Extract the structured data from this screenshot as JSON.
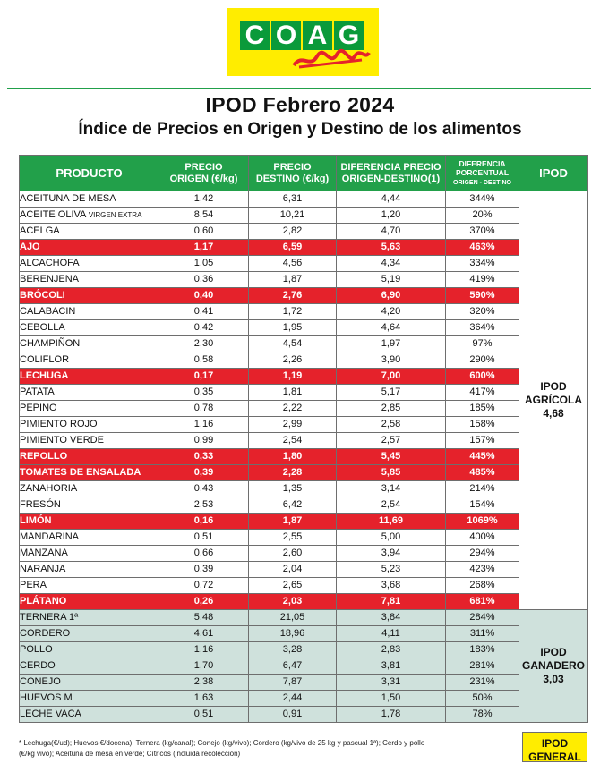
{
  "logo": {
    "text": "COAG",
    "letters": [
      "C",
      "O",
      "A",
      "G"
    ]
  },
  "title": "IPOD Febrero 2024",
  "subtitle": "Índice de Precios en Origen y Destino de los alimentos",
  "headers": {
    "producto": "PRODUCTO",
    "origen": [
      "PRECIO",
      "ORIGEN (€/kg)"
    ],
    "destino": [
      "PRECIO",
      "DESTINO (€/kg)"
    ],
    "diferencia": [
      "DIFERENCIA PRECIO",
      "ORIGEN-DESTINO(1)"
    ],
    "porcentual": [
      "DIFERENCIA",
      "PORCENTUAL",
      "ORIGEN - DESTINO"
    ],
    "ipod": "IPOD"
  },
  "agricola": {
    "label": [
      "IPOD",
      "AGRÍCOLA",
      "4,68"
    ],
    "rows": [
      {
        "p": "ACEITUNA DE MESA",
        "o": "1,42",
        "d": "6,31",
        "df": "4,44",
        "pc": "344%",
        "hl": false
      },
      {
        "p": "ACEITE OLIVA",
        "note": "VIRGEN EXTRA",
        "o": "8,54",
        "d": "10,21",
        "df": "1,20",
        "pc": "20%",
        "hl": false
      },
      {
        "p": "ACELGA",
        "o": "0,60",
        "d": "2,82",
        "df": "4,70",
        "pc": "370%",
        "hl": false
      },
      {
        "p": "AJO",
        "o": "1,17",
        "d": "6,59",
        "df": "5,63",
        "pc": "463%",
        "hl": true
      },
      {
        "p": "ALCACHOFA",
        "o": "1,05",
        "d": "4,56",
        "df": "4,34",
        "pc": "334%",
        "hl": false
      },
      {
        "p": "BERENJENA",
        "o": "0,36",
        "d": "1,87",
        "df": "5,19",
        "pc": "419%",
        "hl": false
      },
      {
        "p": "BRÓCOLI",
        "o": "0,40",
        "d": "2,76",
        "df": "6,90",
        "pc": "590%",
        "hl": true
      },
      {
        "p": "CALABACIN",
        "o": "0,41",
        "d": "1,72",
        "df": "4,20",
        "pc": "320%",
        "hl": false
      },
      {
        "p": "CEBOLLA",
        "o": "0,42",
        "d": "1,95",
        "df": "4,64",
        "pc": "364%",
        "hl": false
      },
      {
        "p": "CHAMPIÑON",
        "o": "2,30",
        "d": "4,54",
        "df": "1,97",
        "pc": "97%",
        "hl": false
      },
      {
        "p": "COLIFLOR",
        "o": "0,58",
        "d": "2,26",
        "df": "3,90",
        "pc": "290%",
        "hl": false
      },
      {
        "p": "LECHUGA",
        "o": "0,17",
        "d": "1,19",
        "df": "7,00",
        "pc": "600%",
        "hl": true
      },
      {
        "p": "PATATA",
        "o": "0,35",
        "d": "1,81",
        "df": "5,17",
        "pc": "417%",
        "hl": false
      },
      {
        "p": "PEPINO",
        "o": "0,78",
        "d": "2,22",
        "df": "2,85",
        "pc": "185%",
        "hl": false
      },
      {
        "p": "PIMIENTO ROJO",
        "o": "1,16",
        "d": "2,99",
        "df": "2,58",
        "pc": "158%",
        "hl": false
      },
      {
        "p": "PIMIENTO VERDE",
        "o": "0,99",
        "d": "2,54",
        "df": "2,57",
        "pc": "157%",
        "hl": false
      },
      {
        "p": "REPOLLO",
        "o": "0,33",
        "d": "1,80",
        "df": "5,45",
        "pc": "445%",
        "hl": true
      },
      {
        "p": "TOMATES DE ENSALADA",
        "o": "0,39",
        "d": "2,28",
        "df": "5,85",
        "pc": "485%",
        "hl": true
      },
      {
        "p": "ZANAHORIA",
        "o": "0,43",
        "d": "1,35",
        "df": "3,14",
        "pc": "214%",
        "hl": false
      },
      {
        "p": "FRESÓN",
        "o": "2,53",
        "d": "6,42",
        "df": "2,54",
        "pc": "154%",
        "hl": false
      },
      {
        "p": "LIMÓN",
        "o": "0,16",
        "d": "1,87",
        "df": "11,69",
        "pc": "1069%",
        "hl": true
      },
      {
        "p": "MANDARINA",
        "o": "0,51",
        "d": "2,55",
        "df": "5,00",
        "pc": "400%",
        "hl": false
      },
      {
        "p": "MANZANA",
        "o": "0,66",
        "d": "2,60",
        "df": "3,94",
        "pc": "294%",
        "hl": false
      },
      {
        "p": "NARANJA",
        "o": "0,39",
        "d": "2,04",
        "df": "5,23",
        "pc": "423%",
        "hl": false
      },
      {
        "p": "PERA",
        "o": "0,72",
        "d": "2,65",
        "df": "3,68",
        "pc": "268%",
        "hl": false
      },
      {
        "p": "PLÁTANO",
        "o": "0,26",
        "d": "2,03",
        "df": "7,81",
        "pc": "681%",
        "hl": true
      }
    ]
  },
  "ganadero": {
    "label": [
      "IPOD",
      "GANADERO",
      "3,03"
    ],
    "rows": [
      {
        "p": "TERNERA 1ª",
        "o": "5,48",
        "d": "21,05",
        "df": "3,84",
        "pc": "284%",
        "hl": false
      },
      {
        "p": "CORDERO",
        "o": "4,61",
        "d": "18,96",
        "df": "4,11",
        "pc": "311%",
        "hl": false
      },
      {
        "p": "POLLO",
        "o": "1,16",
        "d": "3,28",
        "df": "2,83",
        "pc": "183%",
        "hl": false
      },
      {
        "p": "CERDO",
        "o": "1,70",
        "d": "6,47",
        "df": "3,81",
        "pc": "281%",
        "hl": false
      },
      {
        "p": "CONEJO",
        "o": "2,38",
        "d": "7,87",
        "df": "3,31",
        "pc": "231%",
        "hl": false
      },
      {
        "p": "HUEVOS M",
        "o": "1,63",
        "d": "2,44",
        "df": "1,50",
        "pc": "50%",
        "hl": false
      },
      {
        "p": "LECHE VACA",
        "o": "0,51",
        "d": "0,91",
        "df": "1,78",
        "pc": "78%",
        "hl": false
      }
    ]
  },
  "footnote": [
    "* Lechuga(€/ud); Huevos €/docena); Ternera (kg/canal); Conejo (kg/vivo); Cordero (kg/vivo de 25 kg y pascual 1ª); Cerdo y pollo",
    "(€/kg vivo); Aceituna de mesa en verde; Cítricos (incluida recolección)"
  ],
  "general": [
    "IPOD",
    "GENERAL"
  ],
  "colors": {
    "green": "#22a04a",
    "red": "#e5222b",
    "yellow": "#ffed00",
    "gray_green": "#cfe1dc"
  }
}
